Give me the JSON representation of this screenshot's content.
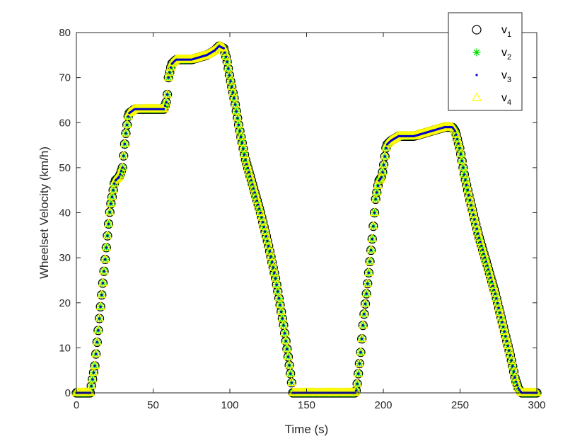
{
  "chart_data": {
    "type": "scatter",
    "title": "",
    "xlabel": "Time (s)",
    "ylabel": "Wheelset Velocity (km/h)",
    "xlim": [
      0,
      300
    ],
    "ylim": [
      0,
      80
    ],
    "xticks": [
      0,
      50,
      100,
      150,
      200,
      250,
      300
    ],
    "yticks": [
      0,
      10,
      20,
      30,
      40,
      50,
      60,
      70,
      80
    ],
    "grid": false,
    "legend_position": "top-right",
    "profile": {
      "t": [
        0,
        9,
        10,
        12,
        14,
        16,
        18,
        20,
        22,
        25,
        28,
        30,
        32,
        34,
        38,
        45,
        57,
        59,
        60,
        62,
        65,
        70,
        75,
        80,
        85,
        90,
        93,
        96,
        98,
        100,
        103,
        106,
        110,
        115,
        120,
        125,
        130,
        135,
        138,
        140,
        141,
        142,
        145,
        155,
        165,
        175,
        182,
        183,
        185,
        187,
        190,
        193,
        195,
        197,
        199,
        200,
        202,
        205,
        210,
        220,
        230,
        240,
        245,
        247,
        250,
        253,
        257,
        262,
        268,
        273,
        278,
        283,
        286,
        288,
        290,
        292,
        295,
        300
      ],
      "v": [
        0,
        0,
        2,
        6,
        13,
        20,
        27,
        34,
        41,
        47,
        48,
        50,
        57,
        62,
        63,
        63,
        63,
        65,
        70,
        73,
        74,
        74,
        74,
        74.5,
        75,
        76,
        77,
        76.5,
        74,
        70,
        65,
        59,
        52,
        46,
        40,
        33,
        25,
        15,
        8,
        3,
        0,
        0,
        0,
        0,
        0,
        0,
        0,
        2,
        8,
        16,
        25,
        35,
        43,
        47,
        48,
        50,
        55,
        56,
        57,
        57,
        58,
        59,
        59,
        58,
        54,
        48,
        42,
        35,
        28,
        22,
        15,
        8,
        3,
        1,
        0,
        0,
        0,
        0
      ],
      "sample_step": 0.75
    },
    "series": [
      {
        "name": "v1",
        "label": "v",
        "subscript": "1",
        "marker": "circle",
        "color": "#000000"
      },
      {
        "name": "v2",
        "label": "v",
        "subscript": "2",
        "marker": "asterisk",
        "color": "#00dd00"
      },
      {
        "name": "v3",
        "label": "v",
        "subscript": "3",
        "marker": "dot",
        "color": "#0000cc"
      },
      {
        "name": "v4",
        "label": "v",
        "subscript": "4",
        "marker": "triangle",
        "color": "#ffff00"
      }
    ]
  }
}
